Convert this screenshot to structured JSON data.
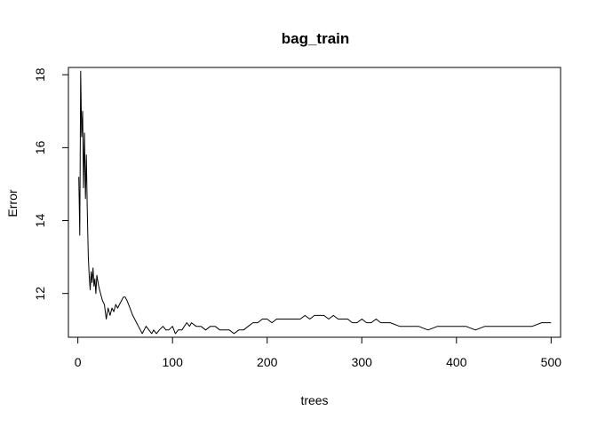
{
  "chart_data": {
    "type": "line",
    "title": "bag_train",
    "xlabel": "trees",
    "ylabel": "Error",
    "xlim": [
      -10,
      510
    ],
    "ylim": [
      10.8,
      18.2
    ],
    "xticks": [
      0,
      100,
      200,
      300,
      400,
      500
    ],
    "xtick_labels": [
      "0",
      "100",
      "200",
      "300",
      "400",
      "500"
    ],
    "yticks": [
      12,
      14,
      16,
      18
    ],
    "ytick_labels": [
      "12",
      "14",
      "16",
      "18"
    ],
    "grid": false,
    "legend": "none",
    "line_color": "#000000",
    "series": [
      {
        "x": [
          1,
          2,
          3,
          4,
          5,
          6,
          7,
          8,
          9,
          10,
          11,
          12,
          13,
          14,
          15,
          16,
          17,
          18,
          19,
          20,
          22,
          24,
          26,
          28,
          30,
          32,
          34,
          36,
          38,
          40,
          42,
          44,
          46,
          48,
          50,
          52,
          55,
          58,
          60,
          62,
          64,
          66,
          68,
          70,
          72,
          75,
          78,
          80,
          83,
          86,
          90,
          93,
          96,
          100,
          103,
          106,
          110,
          115,
          118,
          120,
          125,
          130,
          135,
          140,
          145,
          150,
          155,
          160,
          165,
          170,
          175,
          180,
          185,
          190,
          195,
          200,
          205,
          210,
          215,
          220,
          225,
          230,
          235,
          240,
          245,
          250,
          255,
          260,
          265,
          270,
          275,
          280,
          285,
          290,
          295,
          300,
          305,
          310,
          315,
          320,
          330,
          340,
          350,
          360,
          370,
          380,
          390,
          400,
          410,
          420,
          430,
          440,
          450,
          460,
          470,
          480,
          490,
          500
        ],
        "y": [
          15.2,
          13.6,
          18.1,
          16.3,
          17.0,
          14.9,
          16.4,
          14.6,
          15.8,
          14.2,
          13.0,
          12.5,
          12.1,
          12.6,
          12.3,
          12.7,
          12.2,
          12.4,
          12.0,
          12.5,
          12.2,
          12.0,
          11.8,
          11.7,
          11.3,
          11.6,
          11.4,
          11.6,
          11.5,
          11.7,
          11.6,
          11.7,
          11.8,
          11.9,
          11.9,
          11.8,
          11.6,
          11.4,
          11.3,
          11.2,
          11.1,
          11.0,
          10.9,
          11.0,
          11.1,
          11.0,
          10.9,
          11.0,
          10.9,
          11.0,
          11.1,
          11.0,
          11.0,
          11.1,
          10.9,
          11.0,
          11.0,
          11.2,
          11.1,
          11.2,
          11.1,
          11.1,
          11.0,
          11.1,
          11.1,
          11.0,
          11.0,
          11.0,
          10.9,
          11.0,
          11.0,
          11.1,
          11.2,
          11.2,
          11.3,
          11.3,
          11.2,
          11.3,
          11.3,
          11.3,
          11.3,
          11.3,
          11.3,
          11.4,
          11.3,
          11.4,
          11.4,
          11.4,
          11.3,
          11.4,
          11.3,
          11.3,
          11.3,
          11.2,
          11.2,
          11.3,
          11.2,
          11.2,
          11.3,
          11.2,
          11.2,
          11.1,
          11.1,
          11.1,
          11.0,
          11.1,
          11.1,
          11.1,
          11.1,
          11.0,
          11.1,
          11.1,
          11.1,
          11.1,
          11.1,
          11.1,
          11.2,
          11.2
        ]
      }
    ]
  }
}
